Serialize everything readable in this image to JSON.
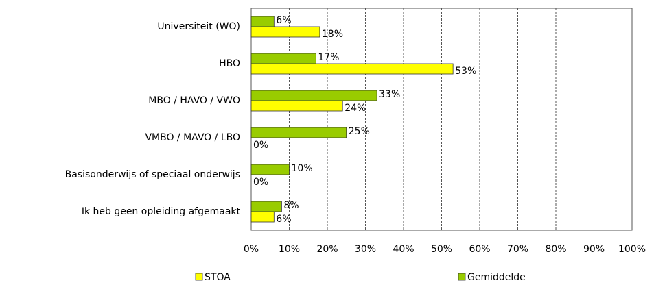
{
  "chart_data": {
    "type": "bar",
    "orientation": "horizontal",
    "categories": [
      "Universiteit (WO)",
      "HBO",
      "MBO / HAVO / VWO",
      "VMBO / MAVO / LBO",
      "Basisonderwijs of speciaal onderwijs",
      "Ik heb geen opleiding afgemaakt"
    ],
    "series": [
      {
        "name": "STOA",
        "color": "#ffff00",
        "values": [
          18,
          53,
          24,
          0,
          0,
          6
        ],
        "value_labels": [
          "18%",
          "53%",
          "24%",
          "0%",
          "0%",
          "6%"
        ]
      },
      {
        "name": "Gemiddelde",
        "color": "#99cc00",
        "values": [
          6,
          17,
          33,
          25,
          10,
          8
        ],
        "value_labels": [
          "6%",
          "17%",
          "33%",
          "25%",
          "10%",
          "8%"
        ]
      }
    ],
    "xlim": [
      0,
      100
    ],
    "xticks": [
      {
        "value": 0,
        "label": "0%"
      },
      {
        "value": 10,
        "label": "10%"
      },
      {
        "value": 20,
        "label": "20%"
      },
      {
        "value": 30,
        "label": "30%"
      },
      {
        "value": 40,
        "label": "40%"
      },
      {
        "value": 50,
        "label": "50%"
      },
      {
        "value": 60,
        "label": "60%"
      },
      {
        "value": 70,
        "label": "70%"
      },
      {
        "value": 80,
        "label": "80%"
      },
      {
        "value": 90,
        "label": "90%"
      },
      {
        "value": 100,
        "label": "100%"
      }
    ],
    "grid": true,
    "legend": "bottom"
  }
}
